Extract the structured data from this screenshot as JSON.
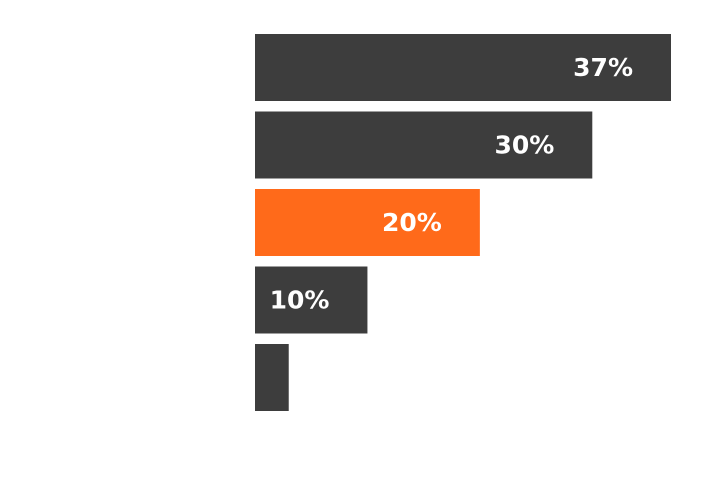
{
  "chart_data": {
    "type": "bar",
    "orientation": "horizontal",
    "categories": [
      "",
      "",
      "",
      "",
      ""
    ],
    "values": [
      37,
      30,
      20,
      10,
      3
    ],
    "data_labels": [
      "37%",
      "30%",
      "20%",
      "10%",
      ""
    ],
    "unit": "%",
    "xlim": [
      0,
      37
    ],
    "grid": false,
    "legend": "none",
    "highlight_index": 2,
    "colors": {
      "default": "#3d3d3d",
      "highlight": "#ff6a1a",
      "label": "#ffffff",
      "background": "#ffffff"
    }
  }
}
